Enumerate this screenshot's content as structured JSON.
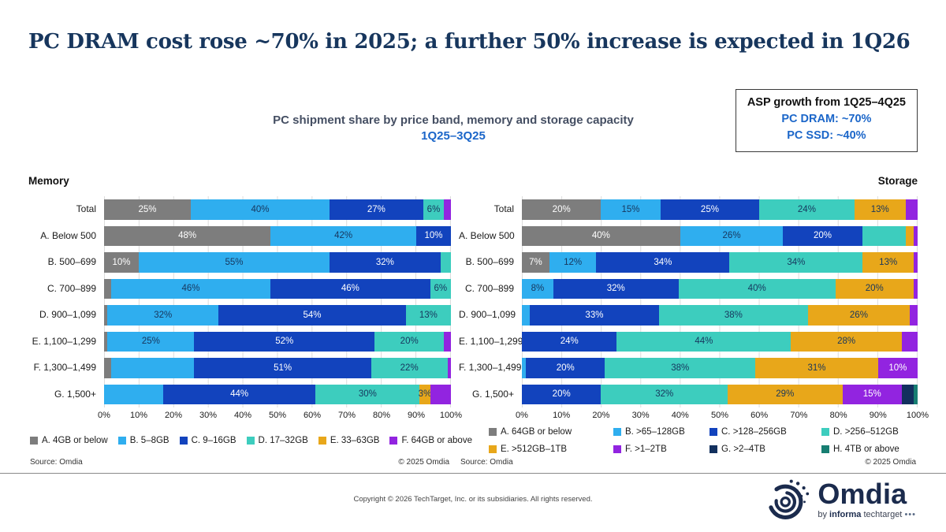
{
  "title": "PC DRAM cost rose ~70% in 2025; a further 50% increase is expected in 1Q26",
  "subtitle": {
    "line1": "PC shipment share by price band, memory and storage capacity",
    "line2": "1Q25–3Q25"
  },
  "asp_box": {
    "title": "ASP growth from 1Q25–4Q25",
    "lines": [
      "PC DRAM: ~70%",
      "PC SSD: ~40%"
    ]
  },
  "colors": [
    "#7D7D7D",
    "#2FAEEF",
    "#1243BD",
    "#3DCDBE",
    "#E8A71A",
    "#9224E0",
    "#12305E",
    "#177E72"
  ],
  "label_dark": "#17365D",
  "label_light": "#FFFFFF",
  "chart_data": [
    {
      "type": "bar",
      "name": "Memory",
      "orientation": "horizontal-stacked",
      "unit": "%",
      "xlim": [
        0,
        100
      ],
      "x_ticks": [
        "0%",
        "10%",
        "20%",
        "30%",
        "40%",
        "50%",
        "60%",
        "70%",
        "80%",
        "90%",
        "100%"
      ],
      "categories": [
        "Total",
        "A. Below 500",
        "B. 500–699",
        "C. 700–899",
        "D. 900–1,099",
        "E. 1,100–1,299",
        "F. 1,300–1,499",
        "G. 1,500+"
      ],
      "legend": [
        {
          "label": "A. 4GB or below",
          "color": 0
        },
        {
          "label": "B. 5–8GB",
          "color": 1
        },
        {
          "label": "C. 9–16GB",
          "color": 2
        },
        {
          "label": "D. 17–32GB",
          "color": 3
        },
        {
          "label": "E. 33–63GB",
          "color": 4
        },
        {
          "label": "F. 64GB or above",
          "color": 5
        }
      ],
      "rows": [
        {
          "label": "Total",
          "segments": [
            {
              "c": 0,
              "v": 25,
              "t": "25%"
            },
            {
              "c": 1,
              "v": 40,
              "t": "40%"
            },
            {
              "c": 2,
              "v": 27,
              "t": "27%"
            },
            {
              "c": 3,
              "v": 6,
              "t": "6%"
            },
            {
              "c": 5,
              "v": 2,
              "t": null
            }
          ]
        },
        {
          "label": "A. Below 500",
          "segments": [
            {
              "c": 0,
              "v": 48,
              "t": "48%"
            },
            {
              "c": 1,
              "v": 42,
              "t": "42%"
            },
            {
              "c": 2,
              "v": 10,
              "t": "10%"
            }
          ]
        },
        {
          "label": "B. 500–699",
          "segments": [
            {
              "c": 0,
              "v": 10,
              "t": "10%"
            },
            {
              "c": 1,
              "v": 55,
              "t": "55%"
            },
            {
              "c": 2,
              "v": 32,
              "t": "32%"
            },
            {
              "c": 3,
              "v": 3,
              "t": null
            }
          ]
        },
        {
          "label": "C. 700–899",
          "segments": [
            {
              "c": 0,
              "v": 2,
              "t": null
            },
            {
              "c": 1,
              "v": 46,
              "t": "46%"
            },
            {
              "c": 2,
              "v": 46,
              "t": "46%"
            },
            {
              "c": 3,
              "v": 6,
              "t": "6%"
            }
          ]
        },
        {
          "label": "D. 900–1,099",
          "segments": [
            {
              "c": 0,
              "v": 1,
              "t": null
            },
            {
              "c": 1,
              "v": 32,
              "t": "32%"
            },
            {
              "c": 2,
              "v": 54,
              "t": "54%"
            },
            {
              "c": 3,
              "v": 13,
              "t": "13%"
            }
          ]
        },
        {
          "label": "E. 1,100–1,299",
          "segments": [
            {
              "c": 0,
              "v": 1,
              "t": null
            },
            {
              "c": 1,
              "v": 25,
              "t": "25%"
            },
            {
              "c": 2,
              "v": 52,
              "t": "52%"
            },
            {
              "c": 3,
              "v": 20,
              "t": "20%"
            },
            {
              "c": 5,
              "v": 2,
              "t": null
            }
          ]
        },
        {
          "label": "F. 1,300–1,499",
          "segments": [
            {
              "c": 0,
              "v": 2,
              "t": null
            },
            {
              "c": 1,
              "v": 24,
              "t": null
            },
            {
              "c": 2,
              "v": 51,
              "t": "51%"
            },
            {
              "c": 3,
              "v": 22,
              "t": "22%"
            },
            {
              "c": 5,
              "v": 1,
              "t": null
            }
          ]
        },
        {
          "label": "G. 1,500+",
          "segments": [
            {
              "c": 1,
              "v": 17,
              "t": null
            },
            {
              "c": 2,
              "v": 44,
              "t": "44%"
            },
            {
              "c": 3,
              "v": 30,
              "t": "30%"
            },
            {
              "c": 4,
              "v": 3,
              "t": "3%"
            },
            {
              "c": 5,
              "v": 6,
              "t": null
            }
          ]
        }
      ]
    },
    {
      "type": "bar",
      "name": "Storage",
      "orientation": "horizontal-stacked",
      "unit": "%",
      "xlim": [
        0,
        100
      ],
      "x_ticks": [
        "0%",
        "10%",
        "20%",
        "30%",
        "40%",
        "50%",
        "60%",
        "70%",
        "80%",
        "90%",
        "100%"
      ],
      "categories": [
        "Total",
        "A. Below 500",
        "B. 500–699",
        "C. 700–899",
        "D. 900–1,099",
        "E. 1,100–1,299",
        "F. 1,300–1,499",
        "G. 1,500+"
      ],
      "legend": [
        {
          "label": "A. 64GB or below",
          "color": 0
        },
        {
          "label": "B. >65–128GB",
          "color": 1
        },
        {
          "label": "C. >128–256GB",
          "color": 2
        },
        {
          "label": "D. >256–512GB",
          "color": 3
        },
        {
          "label": "E. >512GB–1TB",
          "color": 4
        },
        {
          "label": "F. >1–2TB",
          "color": 5
        },
        {
          "label": "G. >2–4TB",
          "color": 6
        },
        {
          "label": "H. 4TB or above",
          "color": 7
        }
      ],
      "rows": [
        {
          "label": "Total",
          "segments": [
            {
              "c": 0,
              "v": 20,
              "t": "20%"
            },
            {
              "c": 1,
              "v": 15,
              "t": "15%"
            },
            {
              "c": 2,
              "v": 25,
              "t": "25%"
            },
            {
              "c": 3,
              "v": 24,
              "t": "24%"
            },
            {
              "c": 4,
              "v": 13,
              "t": "13%"
            },
            {
              "c": 5,
              "v": 3,
              "t": null
            }
          ]
        },
        {
          "label": "A. Below 500",
          "segments": [
            {
              "c": 0,
              "v": 40,
              "t": "40%"
            },
            {
              "c": 1,
              "v": 26,
              "t": "26%"
            },
            {
              "c": 2,
              "v": 20,
              "t": "20%"
            },
            {
              "c": 3,
              "v": 11,
              "t": null
            },
            {
              "c": 4,
              "v": 2,
              "t": null
            },
            {
              "c": 5,
              "v": 1,
              "t": null
            }
          ]
        },
        {
          "label": "B. 500–699",
          "segments": [
            {
              "c": 0,
              "v": 7,
              "t": "7%"
            },
            {
              "c": 1,
              "v": 12,
              "t": "12%"
            },
            {
              "c": 2,
              "v": 34,
              "t": "34%"
            },
            {
              "c": 3,
              "v": 34,
              "t": "34%"
            },
            {
              "c": 4,
              "v": 13,
              "t": "13%"
            },
            {
              "c": 5,
              "v": 1,
              "t": null
            }
          ]
        },
        {
          "label": "C. 700–899",
          "segments": [
            {
              "c": 1,
              "v": 8,
              "t": "8%"
            },
            {
              "c": 2,
              "v": 32,
              "t": "32%"
            },
            {
              "c": 3,
              "v": 40,
              "t": "40%"
            },
            {
              "c": 4,
              "v": 20,
              "t": "20%"
            },
            {
              "c": 5,
              "v": 1,
              "t": null
            }
          ]
        },
        {
          "label": "D. 900–1,099",
          "segments": [
            {
              "c": 1,
              "v": 2,
              "t": null
            },
            {
              "c": 2,
              "v": 33,
              "t": "33%"
            },
            {
              "c": 3,
              "v": 38,
              "t": "38%"
            },
            {
              "c": 4,
              "v": 26,
              "t": "26%"
            },
            {
              "c": 5,
              "v": 2,
              "t": null
            }
          ]
        },
        {
          "label": "E. 1,100–1,299",
          "segments": [
            {
              "c": 2,
              "v": 24,
              "t": "24%"
            },
            {
              "c": 3,
              "v": 44,
              "t": "44%"
            },
            {
              "c": 4,
              "v": 28,
              "t": "28%"
            },
            {
              "c": 5,
              "v": 4,
              "t": null
            }
          ]
        },
        {
          "label": "F. 1,300–1,499",
          "segments": [
            {
              "c": 1,
              "v": 1,
              "t": null
            },
            {
              "c": 2,
              "v": 20,
              "t": "20%"
            },
            {
              "c": 3,
              "v": 38,
              "t": "38%"
            },
            {
              "c": 4,
              "v": 31,
              "t": "31%"
            },
            {
              "c": 5,
              "v": 10,
              "t": "10%"
            }
          ]
        },
        {
          "label": "G. 1,500+",
          "segments": [
            {
              "c": 2,
              "v": 20,
              "t": "20%"
            },
            {
              "c": 3,
              "v": 32,
              "t": "32%"
            },
            {
              "c": 4,
              "v": 29,
              "t": "29%"
            },
            {
              "c": 5,
              "v": 15,
              "t": "15%"
            },
            {
              "c": 6,
              "v": 3,
              "t": null
            },
            {
              "c": 7,
              "v": 1,
              "t": null
            }
          ]
        }
      ]
    }
  ],
  "footers": [
    {
      "source": "Source: Omdia",
      "copyright": "© 2025 Omdia"
    },
    {
      "source": "Source: Omdia",
      "copyright": "© 2025 Omdia"
    }
  ],
  "copyright": "Copyright © 2026 TechTarget, Inc. or its subsidiaries. All rights reserved.",
  "logo": {
    "name": "Omdia",
    "byline_prefix": "by ",
    "byline_bold": "informa",
    "byline_suffix": " techtarget",
    "dots": "•••"
  }
}
